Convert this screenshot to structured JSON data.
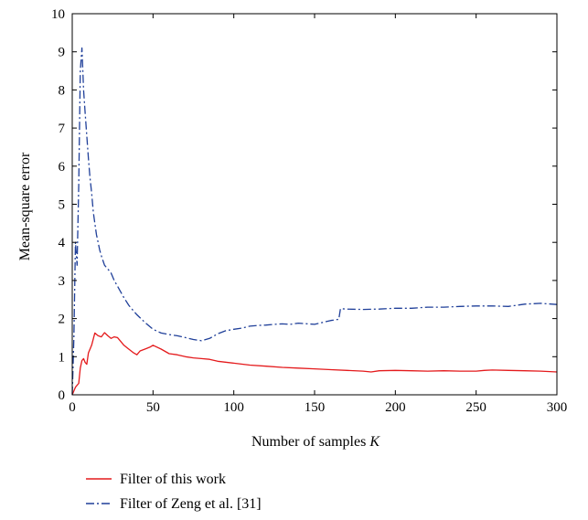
{
  "chart_data": {
    "type": "line",
    "title": "",
    "xlabel": "Number of samples",
    "xlabel_var": "K",
    "ylabel": "Mean-square error",
    "xlim": [
      0,
      300
    ],
    "ylim": [
      0,
      10
    ],
    "xticks": [
      0,
      50,
      100,
      150,
      200,
      250,
      300
    ],
    "yticks": [
      0,
      1,
      2,
      3,
      4,
      5,
      6,
      7,
      8,
      9,
      10
    ],
    "grid": false,
    "legend_position": "below-left",
    "series": [
      {
        "name": "Filter of this work",
        "color": "#e41a1c",
        "style": "solid",
        "x": [
          0,
          1,
          2,
          3,
          4,
          5,
          6,
          7,
          8,
          9,
          10,
          12,
          14,
          16,
          18,
          20,
          22,
          24,
          26,
          28,
          30,
          32,
          35,
          38,
          40,
          42,
          45,
          48,
          50,
          55,
          60,
          65,
          70,
          75,
          80,
          85,
          90,
          100,
          110,
          120,
          130,
          140,
          150,
          160,
          170,
          180,
          185,
          190,
          200,
          210,
          220,
          230,
          240,
          250,
          255,
          260,
          270,
          280,
          290,
          300
        ],
        "y": [
          0.0,
          0.1,
          0.2,
          0.25,
          0.3,
          0.7,
          0.9,
          0.95,
          0.85,
          0.8,
          1.1,
          1.3,
          1.62,
          1.55,
          1.52,
          1.63,
          1.55,
          1.48,
          1.52,
          1.5,
          1.4,
          1.3,
          1.2,
          1.1,
          1.05,
          1.15,
          1.2,
          1.25,
          1.3,
          1.2,
          1.08,
          1.05,
          1.0,
          0.97,
          0.95,
          0.93,
          0.88,
          0.83,
          0.78,
          0.75,
          0.72,
          0.7,
          0.68,
          0.66,
          0.64,
          0.62,
          0.6,
          0.63,
          0.64,
          0.63,
          0.62,
          0.63,
          0.62,
          0.62,
          0.64,
          0.65,
          0.64,
          0.63,
          0.62,
          0.6
        ]
      },
      {
        "name": "Filter of Zeng et al. [31]",
        "color": "#1f3f99",
        "style": "dashdot",
        "x": [
          0,
          1,
          2,
          3,
          4,
          5,
          6,
          7,
          8,
          9,
          10,
          11,
          12,
          13,
          14,
          15,
          16,
          17,
          18,
          20,
          22,
          24,
          26,
          28,
          30,
          32,
          35,
          38,
          40,
          45,
          50,
          55,
          60,
          65,
          70,
          75,
          80,
          85,
          90,
          95,
          100,
          105,
          110,
          115,
          120,
          125,
          130,
          135,
          140,
          150,
          160,
          165,
          166,
          170,
          180,
          190,
          200,
          210,
          220,
          230,
          240,
          250,
          260,
          270,
          280,
          290,
          300
        ],
        "y": [
          0.0,
          1.5,
          4.0,
          3.4,
          5.5,
          8.5,
          9.1,
          8.0,
          7.4,
          6.8,
          6.2,
          5.7,
          5.3,
          4.8,
          4.5,
          4.2,
          4.0,
          3.8,
          3.65,
          3.4,
          3.3,
          3.2,
          3.0,
          2.85,
          2.7,
          2.55,
          2.35,
          2.2,
          2.1,
          1.9,
          1.72,
          1.62,
          1.58,
          1.55,
          1.5,
          1.45,
          1.42,
          1.48,
          1.6,
          1.68,
          1.72,
          1.75,
          1.8,
          1.82,
          1.83,
          1.85,
          1.86,
          1.85,
          1.88,
          1.85,
          1.95,
          1.98,
          2.26,
          2.25,
          2.24,
          2.25,
          2.27,
          2.27,
          2.3,
          2.3,
          2.32,
          2.33,
          2.33,
          2.32,
          2.38,
          2.4,
          2.37
        ]
      }
    ]
  }
}
